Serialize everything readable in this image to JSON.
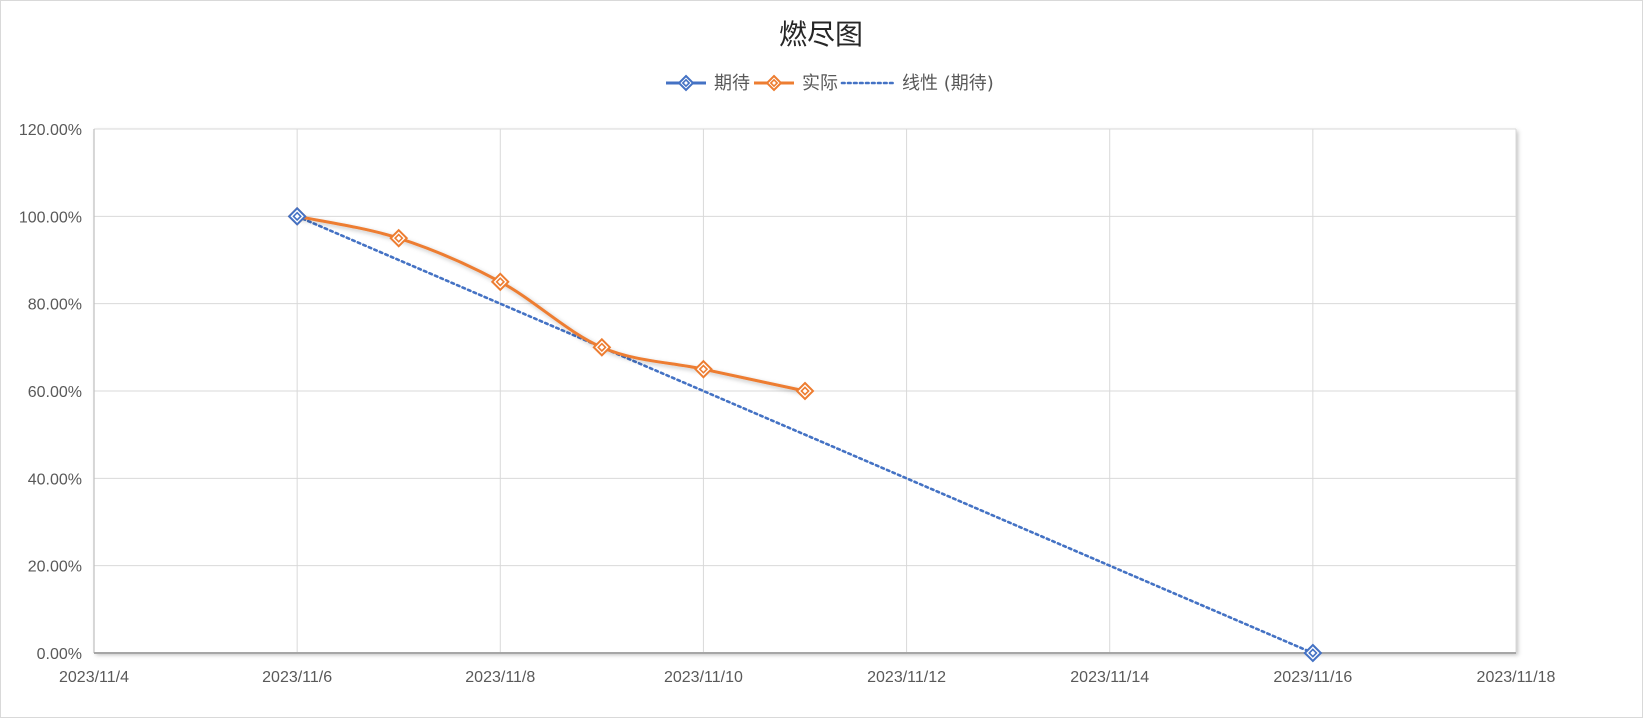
{
  "chart_data": {
    "type": "line",
    "title": "燃尽图",
    "xlabel": "",
    "ylabel": "",
    "x_axis": {
      "type": "date",
      "min": "2023-11-04",
      "max": "2023-11-18",
      "tick_labels": [
        "2023/11/4",
        "2023/11/6",
        "2023/11/8",
        "2023/11/10",
        "2023/11/12",
        "2023/11/14",
        "2023/11/16",
        "2023/11/18"
      ]
    },
    "y_axis": {
      "min": 0,
      "max": 1.2,
      "tick_values": [
        0,
        0.2,
        0.4,
        0.6,
        0.8,
        1.0,
        1.2
      ],
      "tick_labels": [
        "0.00%",
        "20.00%",
        "40.00%",
        "60.00%",
        "80.00%",
        "100.00%",
        "120.00%"
      ]
    },
    "grid": true,
    "legend_position": "top",
    "series": [
      {
        "name": "期待",
        "color": "#4472C4",
        "marker": "diamond",
        "line": "solid",
        "points": [
          {
            "x": "2023-11-06",
            "y": 1.0
          },
          {
            "x": "2023-11-16",
            "y": 0.0
          }
        ]
      },
      {
        "name": "实际",
        "color": "#ED7D31",
        "marker": "diamond",
        "line": "smooth",
        "points": [
          {
            "x": "2023-11-06",
            "y": 1.0
          },
          {
            "x": "2023-11-07",
            "y": 0.95
          },
          {
            "x": "2023-11-08",
            "y": 0.85
          },
          {
            "x": "2023-11-09",
            "y": 0.7
          },
          {
            "x": "2023-11-10",
            "y": 0.65
          },
          {
            "x": "2023-11-11",
            "y": 0.6
          }
        ]
      }
    ],
    "trendline": {
      "name": "线性 (期待)",
      "of_series": "期待",
      "color": "#4472C4",
      "line": "dotted"
    }
  }
}
